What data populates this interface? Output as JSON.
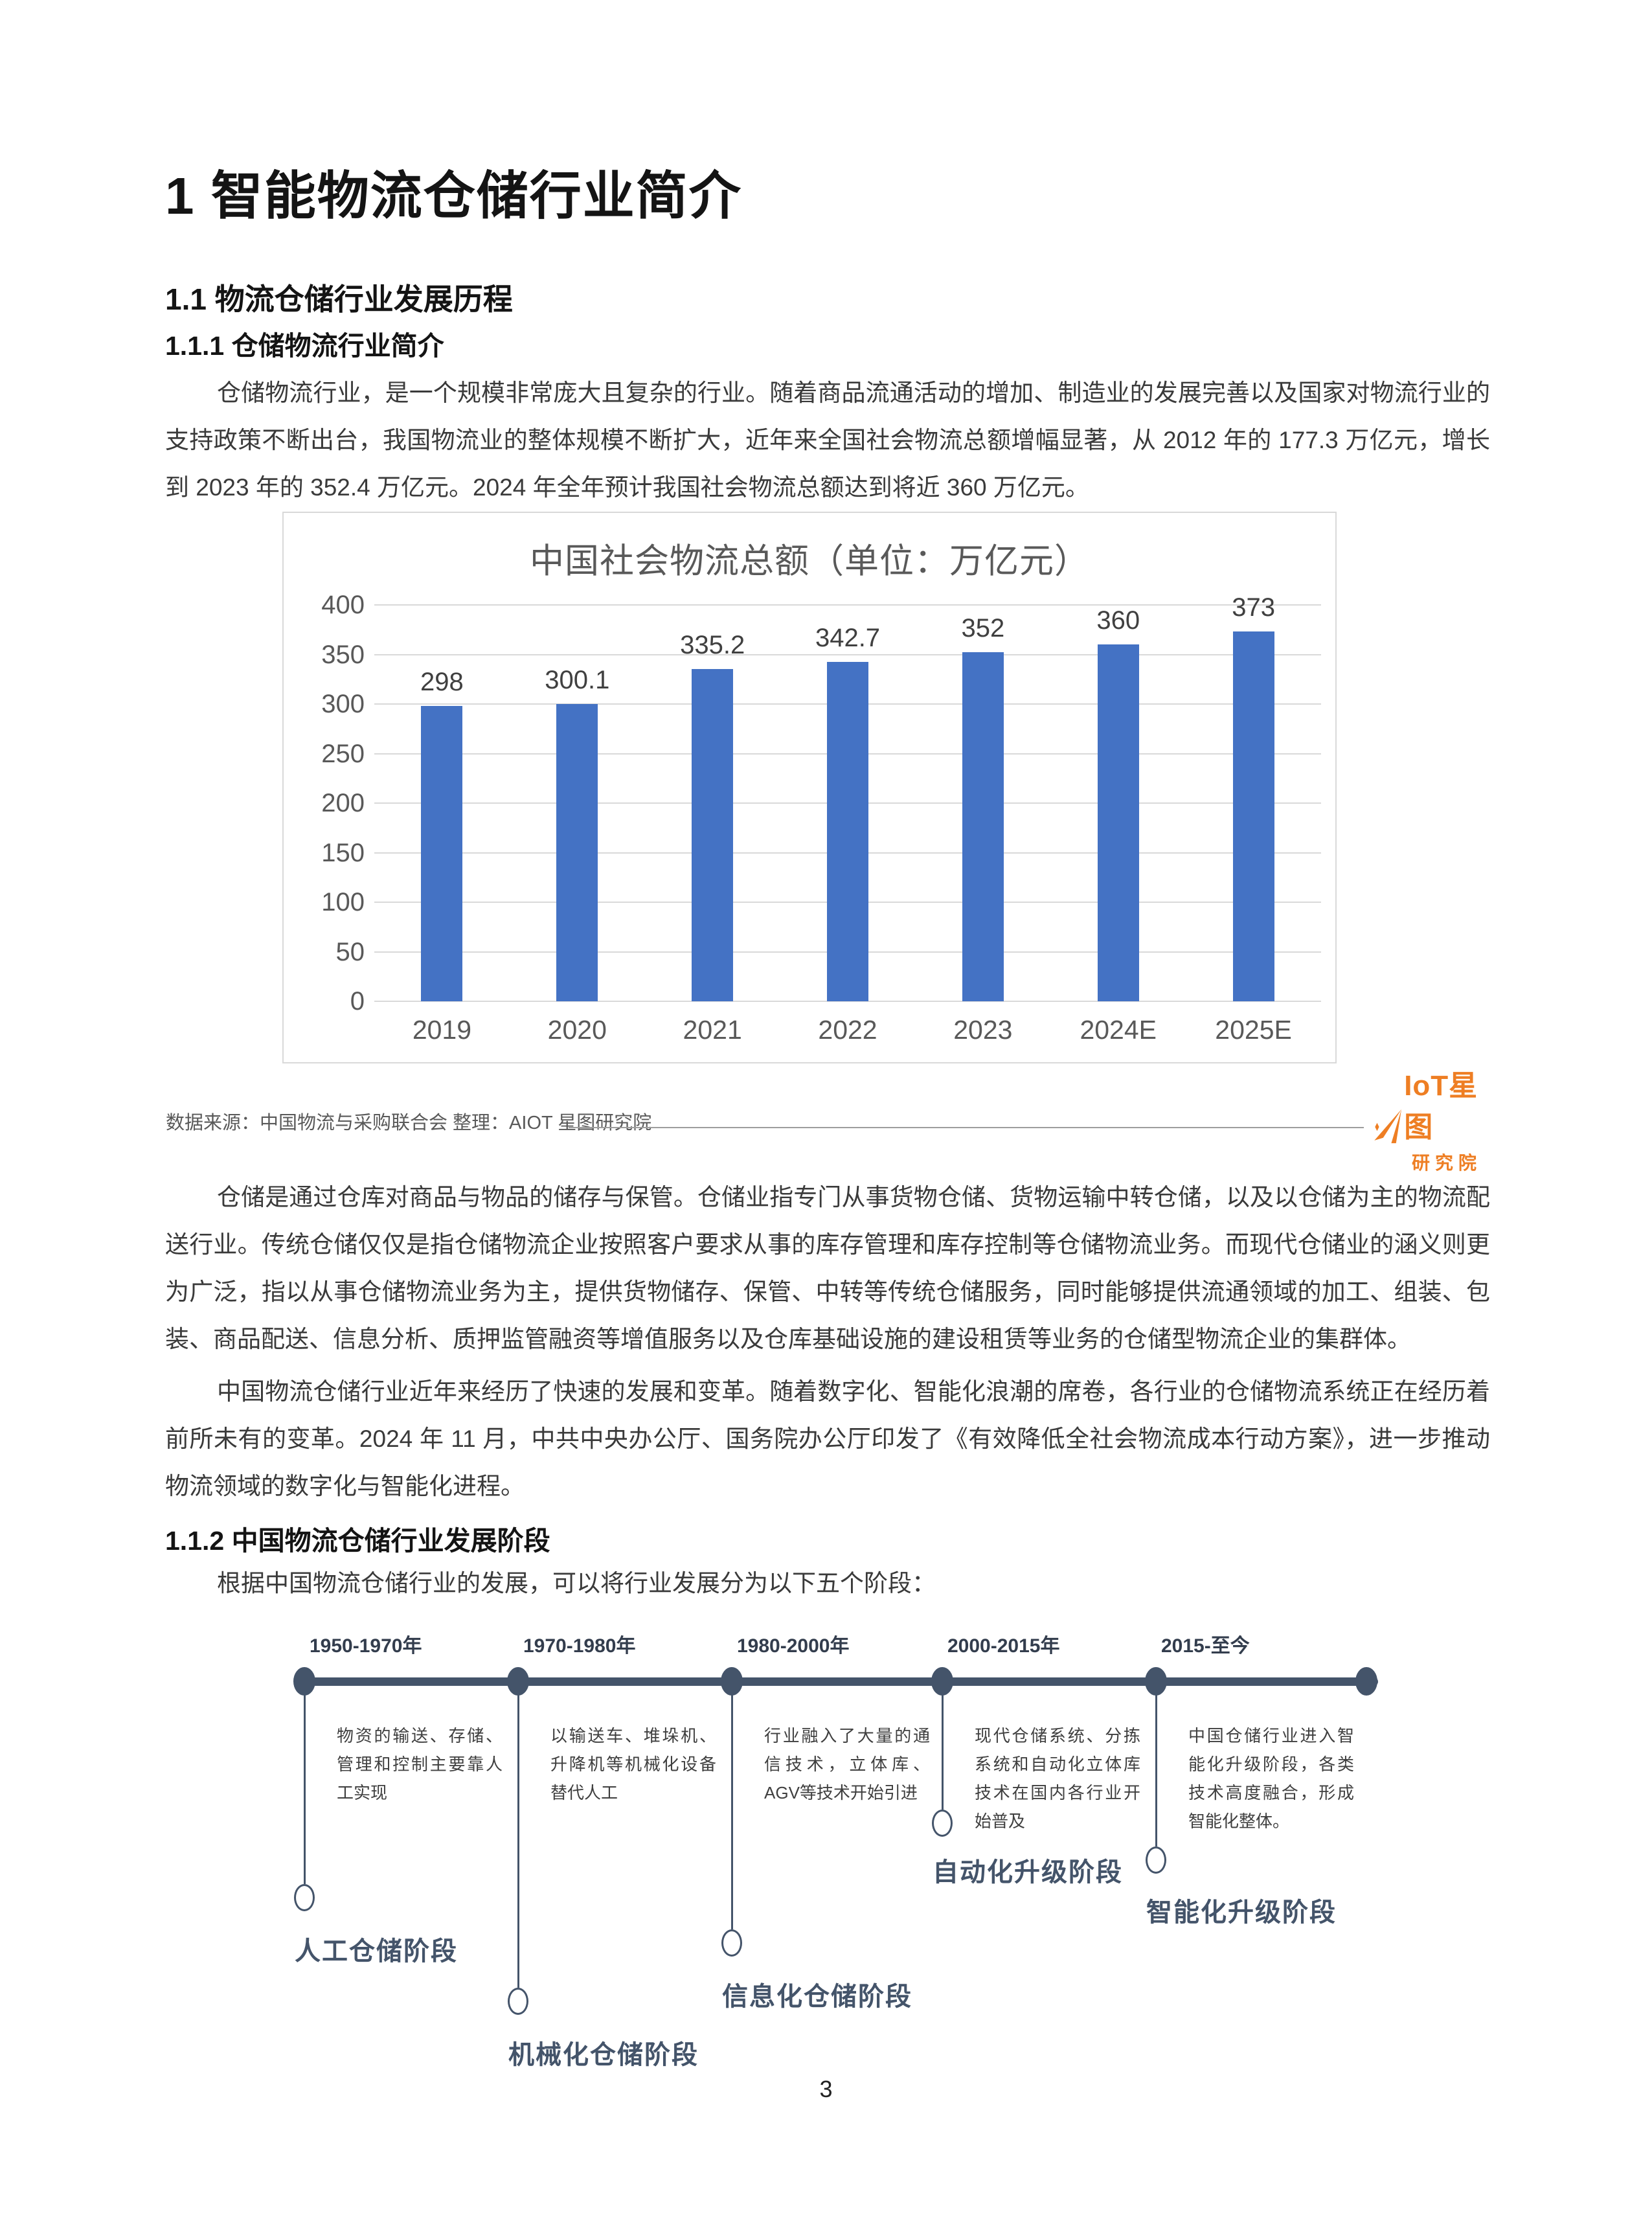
{
  "page": {
    "number": "3"
  },
  "headings": {
    "h1": "1 智能物流仓储行业简介",
    "h2": "1.1 物流仓储行业发展历程",
    "h3_1": "1.1.1 仓储物流行业简介",
    "h3_2": "1.1.2 中国物流仓储行业发展阶段"
  },
  "paragraphs": {
    "p1": "仓储物流行业，是一个规模非常庞大且复杂的行业。随着商品流通活动的增加、制造业的发展完善以及国家对物流行业的支持政策不断出台，我国物流业的整体规模不断扩大，近年来全国社会物流总额增幅显著，从 2012 年的 177.3 万亿元，增长到 2023 年的 352.4 万亿元。2024 年全年预计我国社会物流总额达到将近 360 万亿元。",
    "p2": "仓储是通过仓库对商品与物品的储存与保管。仓储业指专门从事货物仓储、货物运输中转仓储，以及以仓储为主的物流配送行业。传统仓储仅仅是指仓储物流企业按照客户要求从事的库存管理和库存控制等仓储物流业务。而现代仓储业的涵义则更为广泛，指以从事仓储物流业务为主，提供货物储存、保管、中转等传统仓储服务，同时能够提供流通领域的加工、组装、包装、商品配送、信息分析、质押监管融资等增值服务以及仓库基础设施的建设租赁等业务的仓储型物流企业的集群体。",
    "p3": "中国物流仓储行业近年来经历了快速的发展和变革。随着数字化、智能化浪潮的席卷，各行业的仓储物流系统正在经历着前所未有的变革。2024 年 11 月，中共中央办公厅、国务院办公厅印发了《有效降低全社会物流成本行动方案》，进一步推动物流领域的数字化与智能化进程。",
    "p4": "根据中国物流仓储行业的发展，可以将行业发展分为以下五个阶段："
  },
  "chart_data": {
    "type": "bar",
    "title": "中国社会物流总额（单位：万亿元）",
    "categories": [
      "2019",
      "2020",
      "2021",
      "2022",
      "2023",
      "2024E",
      "2025E"
    ],
    "values": [
      298,
      300.1,
      335.2,
      342.7,
      352,
      360,
      373
    ],
    "ylim": [
      0,
      400
    ],
    "yticks": [
      0,
      50,
      100,
      150,
      200,
      250,
      300,
      350,
      400
    ],
    "bar_color": "#4472C4",
    "grid": true,
    "legend": "none",
    "xlabel": "",
    "ylabel": ""
  },
  "source": {
    "text": "数据来源：中国物流与采购联合会  整理：AIOT 星图研究院"
  },
  "logo": {
    "line1": "IoT星图",
    "line2": "研究院",
    "color": "#EE7E23"
  },
  "timeline": {
    "stages": [
      {
        "period": "1950-1970年",
        "desc": "物资的输送、存储、管理和控制主要靠人工实现",
        "label": "人工仓储阶段"
      },
      {
        "period": "1970-1980年",
        "desc": "以输送车、堆垛机、升降机等机械化设备替代人工",
        "label": "机械化仓储阶段"
      },
      {
        "period": "1980-2000年",
        "desc": "行业融入了大量的通信技术，立体库、AGV等技术开始引进",
        "label": "信息化仓储阶段"
      },
      {
        "period": "2000-2015年",
        "desc": "现代仓储系统、分拣系统和自动化立体库技术在国内各行业开始普及",
        "label": "自动化升级阶段"
      },
      {
        "period": "2015-至今",
        "desc": "中国仓储行业进入智能化升级阶段，各类技术高度融合，形成智能化整体。",
        "label": "智能化升级阶段"
      }
    ]
  }
}
